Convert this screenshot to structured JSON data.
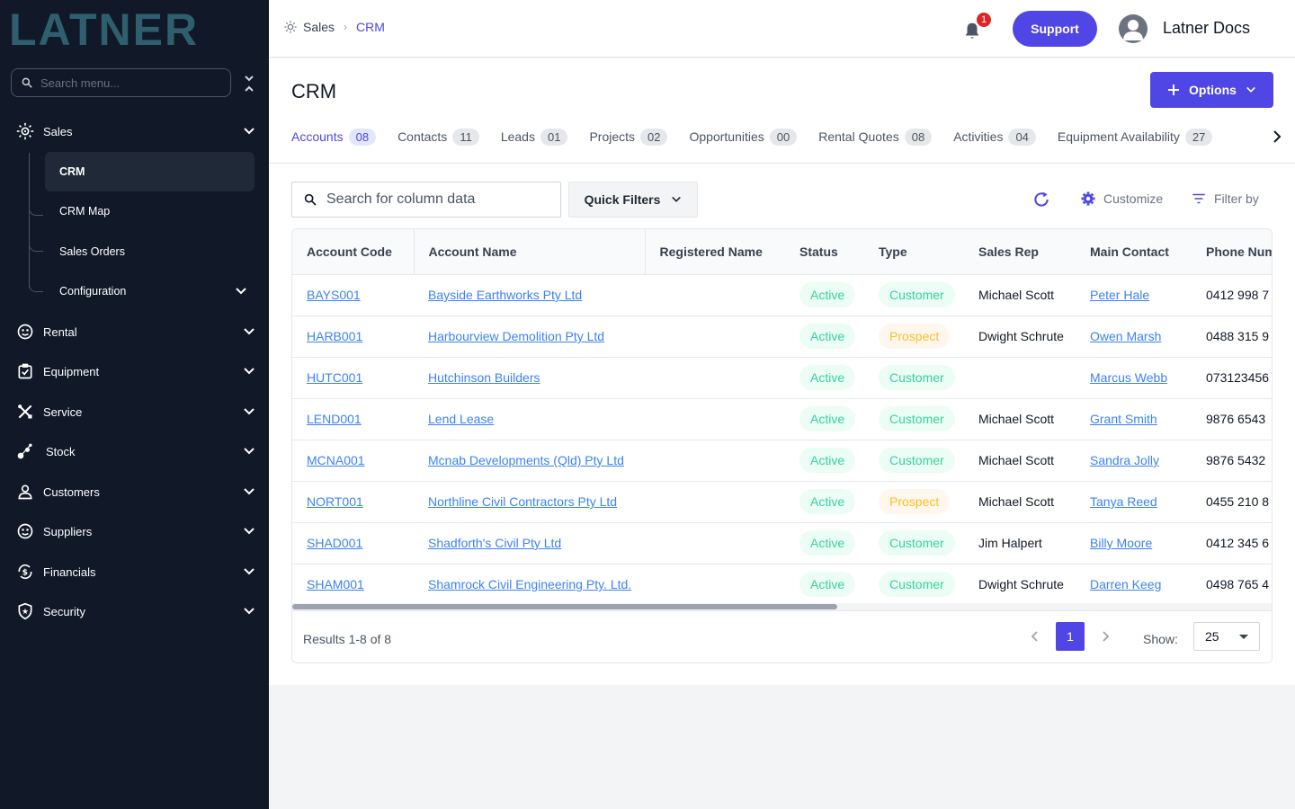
{
  "app": {
    "logo_text": "LATNER"
  },
  "sidebar": {
    "search_placeholder": "Search menu...",
    "items": [
      {
        "label": "Sales",
        "icon": "sales-icon",
        "expanded": true
      },
      {
        "label": "Rental",
        "icon": "rental-icon"
      },
      {
        "label": "Equipment",
        "icon": "equipment-icon"
      },
      {
        "label": "Service",
        "icon": "service-icon"
      },
      {
        "label": "Stock",
        "icon": "stock-icon"
      },
      {
        "label": "Customers",
        "icon": "customers-icon"
      },
      {
        "label": "Suppliers",
        "icon": "suppliers-icon"
      },
      {
        "label": "Financials",
        "icon": "financials-icon"
      },
      {
        "label": "Security",
        "icon": "security-icon"
      }
    ],
    "sales_children": [
      {
        "label": "CRM",
        "active": true
      },
      {
        "label": "CRM Map"
      },
      {
        "label": "Sales Orders"
      },
      {
        "label": "Configuration",
        "has_children": true
      }
    ]
  },
  "topbar": {
    "breadcrumb": [
      "Sales",
      "CRM"
    ],
    "notification_count": "1",
    "support_label": "Support",
    "user_name": "Latner Docs"
  },
  "page": {
    "title": "CRM",
    "options_label": "Options",
    "tabs": [
      {
        "label": "Accounts",
        "count": "08",
        "active": true
      },
      {
        "label": "Contacts",
        "count": "11"
      },
      {
        "label": "Leads",
        "count": "01"
      },
      {
        "label": "Projects",
        "count": "02"
      },
      {
        "label": "Opportunities",
        "count": "00"
      },
      {
        "label": "Rental Quotes",
        "count": "08"
      },
      {
        "label": "Activities",
        "count": "04"
      },
      {
        "label": "Equipment Availability",
        "count": "27"
      }
    ]
  },
  "toolbar": {
    "search_placeholder": "Search for column data",
    "quick_filters_label": "Quick Filters",
    "customize_label": "Customize",
    "filter_by_label": "Filter by"
  },
  "table": {
    "columns": [
      "Account Code",
      "Account Name",
      "Registered Name",
      "Status",
      "Type",
      "Sales Rep",
      "Main Contact",
      "Phone Number"
    ],
    "rows": [
      [
        "BAYS001",
        "Bayside Earthworks Pty Ltd",
        "",
        "Active",
        "Customer",
        "Michael Scott",
        "Peter Hale",
        "0412 998 7"
      ],
      [
        "HARB001",
        "Harbourview Demolition Pty Ltd",
        "",
        "Active",
        "Prospect",
        "Dwight Schrute",
        "Owen Marsh",
        "0488 315 9"
      ],
      [
        "HUTC001",
        "Hutchinson Builders",
        "",
        "Active",
        "Customer",
        "",
        "Marcus Webb",
        "073123456"
      ],
      [
        "LEND001",
        "Lend Lease",
        "",
        "Active",
        "Customer",
        "Michael Scott",
        "Grant Smith",
        "9876 6543"
      ],
      [
        "MCNA001",
        "Mcnab Developments (Qld) Pty Ltd",
        "",
        "Active",
        "Customer",
        "Michael Scott",
        "Sandra Jolly",
        "9876 5432"
      ],
      [
        "NORT001",
        "Northline Civil Contractors Pty Ltd",
        "",
        "Active",
        "Prospect",
        "Michael Scott",
        "Tanya Reed",
        "0455 210 8"
      ],
      [
        "SHAD001",
        "Shadforth's Civil Pty Ltd",
        "",
        "Active",
        "Customer",
        "Jim Halpert",
        "Billy Moore",
        "0412 345 6"
      ],
      [
        "SHAM001",
        "Shamrock Civil Engineering Pty. Ltd.",
        "",
        "Active",
        "Customer",
        "Dwight Schrute",
        "Darren Keeg",
        "0498 765 4"
      ]
    ]
  },
  "pagination": {
    "results_text": "Results 1-8 of 8",
    "current_page": "1",
    "show_label": "Show:",
    "page_size": "25"
  },
  "colors": {
    "sidebar_bg": "#111827",
    "accent": "#4f46e5",
    "link": "#3b82f6",
    "active_status": "#34d399",
    "prospect": "#fbbf24",
    "badge": "#dc2626"
  }
}
